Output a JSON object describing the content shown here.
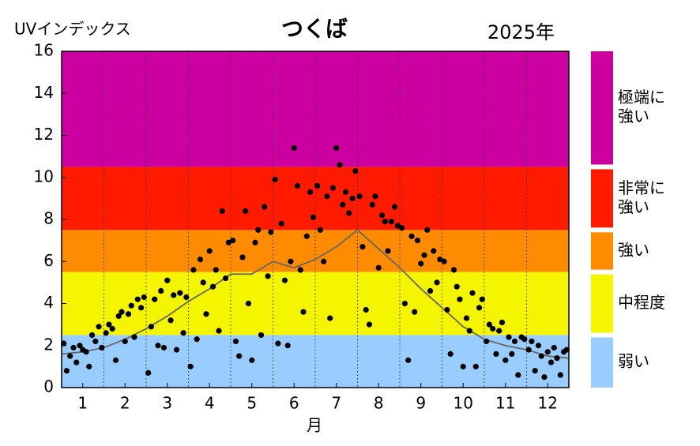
{
  "chart_data": {
    "type": "scatter",
    "title": "つくば",
    "ylabel": "UVインデックス",
    "year_label": "2025年",
    "xlabel": "月",
    "xlim": [
      0.5,
      12.5
    ],
    "xticks": [
      1,
      2,
      3,
      4,
      5,
      6,
      7,
      8,
      9,
      10,
      11,
      12
    ],
    "ylim": [
      0,
      16
    ],
    "yticks": [
      0,
      2,
      4,
      6,
      8,
      10,
      12,
      14,
      16
    ],
    "bands": [
      {
        "from": 0,
        "to": 2.5,
        "color": "#99ccff",
        "label": [
          "弱い"
        ]
      },
      {
        "from": 2.5,
        "to": 5.5,
        "color": "#f5f500",
        "label": [
          "中程度"
        ]
      },
      {
        "from": 5.5,
        "to": 7.5,
        "color": "#ff8c00",
        "label": [
          "強い"
        ]
      },
      {
        "from": 7.5,
        "to": 10.5,
        "color": "#ff1a00",
        "label": [
          "非常に",
          "強い"
        ]
      },
      {
        "from": 10.5,
        "to": 16,
        "color": "#cc00a0",
        "label": [
          "極端に",
          "強い"
        ]
      }
    ],
    "series": [
      {
        "kind": "points",
        "color": "#000000",
        "x": [
          0.55,
          0.62,
          0.7,
          0.78,
          0.85,
          0.93,
          1.0,
          1.08,
          1.15,
          1.22,
          1.3,
          1.38,
          1.45,
          1.55,
          1.62,
          1.7,
          1.78,
          1.85,
          1.92,
          2.0,
          2.08,
          2.15,
          2.22,
          2.3,
          2.38,
          2.45,
          2.55,
          2.62,
          2.7,
          2.78,
          2.85,
          2.92,
          3.0,
          3.08,
          3.15,
          3.22,
          3.3,
          3.38,
          3.45,
          3.55,
          3.62,
          3.7,
          3.78,
          3.85,
          3.92,
          4.0,
          4.08,
          4.15,
          4.22,
          4.3,
          4.38,
          4.45,
          4.55,
          4.62,
          4.7,
          4.78,
          4.85,
          4.92,
          5.0,
          5.08,
          5.15,
          5.22,
          5.3,
          5.38,
          5.45,
          5.55,
          5.62,
          5.7,
          5.78,
          5.85,
          5.92,
          6.0,
          6.08,
          6.15,
          6.22,
          6.3,
          6.38,
          6.45,
          6.55,
          6.62,
          6.7,
          6.78,
          6.85,
          6.92,
          7.0,
          7.08,
          7.15,
          7.22,
          7.3,
          7.38,
          7.45,
          7.55,
          7.62,
          7.7,
          7.78,
          7.85,
          7.92,
          8.0,
          8.08,
          8.15,
          8.22,
          8.3,
          8.38,
          8.45,
          8.55,
          8.62,
          8.7,
          8.78,
          8.85,
          8.92,
          9.0,
          9.08,
          9.15,
          9.22,
          9.3,
          9.38,
          9.45,
          9.55,
          9.62,
          9.7,
          9.78,
          9.85,
          9.92,
          10.0,
          10.08,
          10.15,
          10.22,
          10.3,
          10.38,
          10.45,
          10.55,
          10.62,
          10.7,
          10.78,
          10.85,
          10.92,
          11.0,
          11.08,
          11.15,
          11.22,
          11.3,
          11.38,
          11.45,
          11.55,
          11.62,
          11.7,
          11.78,
          11.85,
          11.92,
          12.0,
          12.08,
          12.15,
          12.22,
          12.3,
          12.38,
          12.45
        ],
        "values": [
          2.1,
          0.8,
          1.5,
          1.9,
          1.2,
          2.0,
          1.8,
          1.7,
          1.0,
          2.5,
          2.2,
          2.9,
          1.9,
          2.6,
          3.0,
          2.8,
          1.3,
          3.4,
          3.6,
          2.2,
          3.5,
          3.9,
          2.4,
          4.2,
          3.8,
          4.3,
          0.7,
          2.9,
          4.2,
          2.0,
          4.6,
          1.9,
          5.1,
          3.2,
          4.4,
          1.8,
          4.5,
          2.6,
          4.3,
          1.0,
          5.6,
          2.3,
          6.1,
          5.0,
          3.5,
          6.5,
          4.8,
          5.6,
          2.7,
          8.4,
          5.2,
          6.9,
          7.0,
          2.2,
          1.5,
          6.2,
          8.4,
          4.0,
          1.3,
          6.9,
          7.5,
          2.5,
          8.6,
          5.3,
          7.4,
          9.9,
          2.1,
          7.8,
          5.1,
          2.0,
          6.0,
          11.4,
          9.6,
          5.6,
          3.6,
          7.2,
          9.3,
          8.1,
          9.6,
          7.5,
          6.0,
          9.1,
          3.3,
          9.5,
          11.4,
          10.6,
          8.7,
          9.3,
          8.3,
          9.0,
          10.3,
          9.1,
          6.7,
          3.7,
          3.0,
          8.7,
          9.1,
          5.7,
          8.2,
          7.9,
          6.5,
          7.9,
          8.6,
          7.7,
          7.6,
          4.0,
          1.3,
          7.2,
          3.6,
          7.0,
          5.9,
          6.3,
          7.5,
          4.6,
          6.5,
          5.0,
          6.1,
          6.0,
          3.7,
          1.6,
          5.6,
          4.8,
          4.2,
          1.0,
          3.3,
          2.7,
          4.5,
          1.0,
          3.8,
          4.2,
          2.2,
          3.0,
          2.8,
          1.6,
          2.7,
          3.1,
          1.3,
          2.4,
          1.6,
          2.2,
          0.6,
          2.4,
          2.3,
          1.8,
          2.2,
          0.8,
          2.0,
          1.5,
          0.5,
          1.7,
          1.2,
          1.9,
          1.4,
          0.6,
          1.7,
          1.8
        ]
      },
      {
        "kind": "line",
        "color": "#666666",
        "x": [
          0.5,
          1,
          1.5,
          2,
          2.5,
          3,
          3.5,
          4,
          4.5,
          5,
          5.5,
          6,
          6.5,
          7,
          7.5,
          8,
          8.5,
          9,
          9.5,
          10,
          10.5,
          11,
          11.5,
          12,
          12.5
        ],
        "values": [
          1.6,
          1.7,
          1.9,
          2.3,
          2.8,
          3.4,
          4.1,
          4.7,
          5.4,
          5.4,
          6.0,
          5.7,
          6.1,
          6.7,
          7.5,
          6.6,
          5.7,
          4.7,
          3.8,
          2.9,
          2.3,
          2.0,
          1.8,
          1.5,
          1.4
        ]
      }
    ]
  }
}
